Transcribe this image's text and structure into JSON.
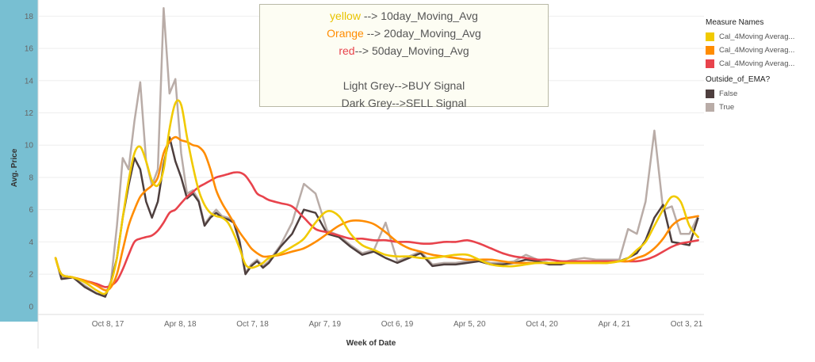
{
  "chart_data": {
    "type": "line",
    "xlabel": "Week of Date",
    "ylabel": "Avg. Price",
    "x_ticks": [
      "Oct 8, 17",
      "Apr 8, 18",
      "Oct 7, 18",
      "Apr 7, 19",
      "Oct 6, 19",
      "Apr 5, 20",
      "Oct 4, 20",
      "Apr 4, 21",
      "Oct 3, 21"
    ],
    "y_ticks": [
      0,
      2,
      4,
      6,
      8,
      10,
      12,
      14,
      16,
      18
    ],
    "ylim": [
      -0.5,
      19.0
    ],
    "xlim": [
      "2017-05-28",
      "2021-10-10"
    ],
    "grid": true,
    "legend_placement": "right",
    "x": [
      "2017-07-09",
      "2017-07-23",
      "2017-08-20",
      "2017-09-17",
      "2017-10-15",
      "2017-11-05",
      "2017-11-19",
      "2017-12-03",
      "2017-12-17",
      "2017-12-31",
      "2018-01-14",
      "2018-01-28",
      "2018-02-11",
      "2018-02-25",
      "2018-03-11",
      "2018-03-25",
      "2018-04-08",
      "2018-04-22",
      "2018-05-06",
      "2018-05-20",
      "2018-06-03",
      "2018-06-17",
      "2018-07-01",
      "2018-07-15",
      "2018-07-29",
      "2018-08-12",
      "2018-08-26",
      "2018-09-09",
      "2018-09-23",
      "2018-10-07",
      "2018-10-21",
      "2018-11-04",
      "2018-11-18",
      "2018-12-02",
      "2018-12-30",
      "2019-01-27",
      "2019-02-24",
      "2019-03-24",
      "2019-04-21",
      "2019-05-19",
      "2019-06-16",
      "2019-07-14",
      "2019-08-11",
      "2019-09-08",
      "2019-10-06",
      "2019-11-03",
      "2019-12-01",
      "2019-12-29",
      "2020-01-26",
      "2020-02-23",
      "2020-03-22",
      "2020-04-19",
      "2020-05-17",
      "2020-06-14",
      "2020-07-12",
      "2020-08-09",
      "2020-09-06",
      "2020-10-04",
      "2020-11-01",
      "2020-11-29",
      "2020-12-27",
      "2021-01-24",
      "2021-02-21",
      "2021-03-21",
      "2021-04-11",
      "2021-05-02",
      "2021-05-23",
      "2021-06-13",
      "2021-07-04",
      "2021-07-25",
      "2021-08-15",
      "2021-09-05",
      "2021-09-26"
    ],
    "series": [
      {
        "name": "Cal_4Moving Averag...",
        "color": "#f1ca00",
        "values": [
          3.0,
          2.0,
          1.8,
          1.5,
          1.0,
          0.8,
          1.5,
          3.0,
          5.5,
          7.8,
          9.5,
          9.9,
          9.0,
          7.8,
          7.5,
          8.5,
          11.0,
          12.6,
          12.5,
          10.5,
          8.7,
          7.2,
          6.3,
          5.8,
          5.6,
          5.5,
          5.2,
          4.5,
          3.6,
          2.6,
          2.4,
          2.5,
          2.7,
          3.0,
          3.3,
          3.7,
          4.2,
          5.2,
          5.9,
          5.6,
          4.5,
          3.8,
          3.5,
          3.2,
          3.1,
          3.1,
          3.0,
          3.0,
          3.1,
          3.2,
          3.2,
          2.9,
          2.6,
          2.5,
          2.5,
          2.6,
          2.7,
          2.7,
          2.7,
          2.7,
          2.7,
          2.7,
          2.7,
          2.8,
          3.0,
          3.5,
          4.0,
          5.0,
          6.0,
          6.8,
          6.5,
          5.0,
          4.3
        ]
      },
      {
        "name": "Cal_4Moving Averag...",
        "color": "#ff8c00",
        "values": [
          3.0,
          2.0,
          1.8,
          1.6,
          1.3,
          1.0,
          1.2,
          2.0,
          3.5,
          5.0,
          6.0,
          6.8,
          7.2,
          7.5,
          8.0,
          9.5,
          10.2,
          10.5,
          10.3,
          10.2,
          10.0,
          9.9,
          9.5,
          8.5,
          7.2,
          6.4,
          5.8,
          5.2,
          4.6,
          4.1,
          3.6,
          3.3,
          3.1,
          3.1,
          3.2,
          3.4,
          3.6,
          4.0,
          4.5,
          5.0,
          5.3,
          5.3,
          5.1,
          4.6,
          4.0,
          3.6,
          3.4,
          3.2,
          3.1,
          3.0,
          2.9,
          2.9,
          2.9,
          2.8,
          2.7,
          2.7,
          2.7,
          2.7,
          2.7,
          2.7,
          2.7,
          2.7,
          2.7,
          2.8,
          2.8,
          3.0,
          3.2,
          3.6,
          4.2,
          5.0,
          5.4,
          5.5,
          5.6
        ]
      },
      {
        "name": "Cal_4Moving Averag...",
        "color": "#e8434c",
        "values": [
          3.0,
          2.0,
          1.8,
          1.6,
          1.4,
          1.2,
          1.3,
          1.6,
          2.3,
          3.2,
          4.0,
          4.2,
          4.3,
          4.4,
          4.7,
          5.2,
          5.8,
          6.0,
          6.4,
          6.8,
          7.1,
          7.4,
          7.6,
          7.8,
          8.0,
          8.1,
          8.2,
          8.3,
          8.3,
          8.1,
          7.6,
          7.0,
          6.8,
          6.6,
          6.4,
          6.2,
          5.5,
          4.8,
          4.6,
          4.4,
          4.2,
          4.2,
          4.1,
          4.1,
          4.0,
          4.0,
          3.9,
          3.9,
          4.0,
          4.0,
          4.1,
          3.9,
          3.6,
          3.3,
          3.1,
          3.0,
          2.9,
          2.9,
          2.8,
          2.8,
          2.8,
          2.8,
          2.8,
          2.8,
          2.8,
          2.8,
          2.9,
          3.1,
          3.4,
          3.7,
          3.9,
          4.0,
          4.1
        ]
      }
    ],
    "signal_series": [
      {
        "name": "False",
        "color": "#4e3f3e",
        "values": [
          3.0,
          1.7,
          1.8,
          1.2,
          0.8,
          0.6,
          1.5,
          3.0,
          5.5,
          7.5,
          9.2,
          8.5,
          6.5,
          5.5,
          6.5,
          8.8,
          10.5,
          9.0,
          8.0,
          6.7,
          7.0,
          6.5,
          5.0,
          5.5,
          5.8,
          5.5,
          5.4,
          5.2,
          4.0,
          2.0,
          2.5,
          2.8,
          2.4,
          2.7,
          3.7,
          4.5,
          6.0,
          5.8,
          4.5,
          4.3,
          3.7,
          3.2,
          3.4,
          3.0,
          2.7,
          3.0,
          3.3,
          2.5,
          2.6,
          2.6,
          2.7,
          2.8,
          2.6,
          2.6,
          2.7,
          2.9,
          2.8,
          2.6,
          2.6,
          2.8,
          2.8,
          2.7,
          2.8,
          2.8,
          3.0,
          3.3,
          4.1,
          5.5,
          6.3,
          4.0,
          3.9,
          3.8,
          5.5
        ]
      },
      {
        "name": "True",
        "color": "#b9aca7",
        "values": [
          3.0,
          1.8,
          1.8,
          1.3,
          0.8,
          0.7,
          1.6,
          5.0,
          9.2,
          8.5,
          11.5,
          13.9,
          9.0,
          7.5,
          8.5,
          18.5,
          13.2,
          14.1,
          9.5,
          7.0,
          7.2,
          6.6,
          5.1,
          5.6,
          6.0,
          5.6,
          5.5,
          5.3,
          4.1,
          2.1,
          2.6,
          2.9,
          2.5,
          2.8,
          3.8,
          5.2,
          7.6,
          7.0,
          4.7,
          4.4,
          3.8,
          3.3,
          3.5,
          5.2,
          2.8,
          3.1,
          3.4,
          2.6,
          2.7,
          2.7,
          2.8,
          2.9,
          2.7,
          2.7,
          2.8,
          3.2,
          2.9,
          2.7,
          2.7,
          2.9,
          3.0,
          2.9,
          2.9,
          2.9,
          4.8,
          4.5,
          6.5,
          10.9,
          6.0,
          6.2,
          4.5,
          4.5,
          5.6
        ]
      }
    ]
  },
  "annotation": {
    "line1": {
      "word": "yellow",
      "rest": " --> 10day_Moving_Avg",
      "color": "#e8c300"
    },
    "line2": {
      "word": "Orange",
      "rest": " --> 20day_Moving_Avg",
      "color": "#ff8c00"
    },
    "line3": {
      "word": "red",
      "rest": "--> 50day_Moving_Avg",
      "color": "#e8434c"
    },
    "line4": "Light Grey-->BUY Signal",
    "line5": "Dark Grey-->SELL Signal"
  },
  "legend": {
    "group1_title": "Measure Names",
    "group1_items": [
      {
        "label": "Cal_4Moving Averag...",
        "color": "#f1ca00"
      },
      {
        "label": "Cal_4Moving Averag...",
        "color": "#ff8c00"
      },
      {
        "label": "Cal_4Moving Averag...",
        "color": "#e8434c"
      }
    ],
    "group2_title": "Outside_of_EMA?",
    "group2_items": [
      {
        "label": "False",
        "color": "#4e3f3e"
      },
      {
        "label": "True",
        "color": "#b9aca7"
      }
    ]
  }
}
